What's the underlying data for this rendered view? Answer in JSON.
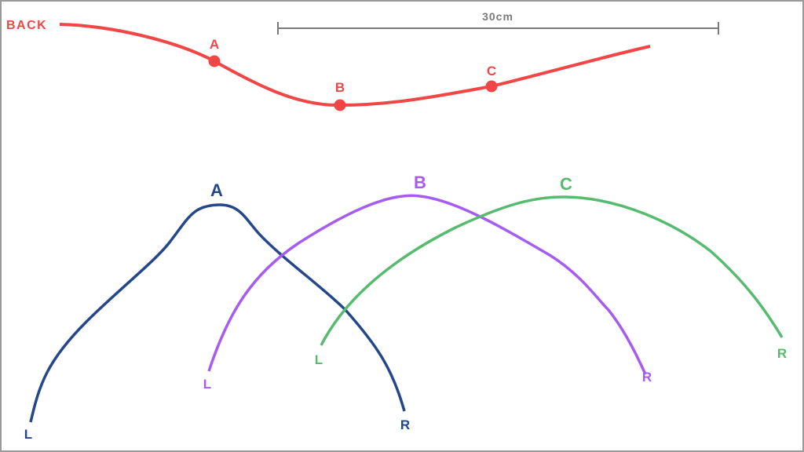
{
  "colors": {
    "back": "#f04646",
    "a": "#24468a",
    "b": "#a65cf0",
    "c": "#56bb6e",
    "scale": "#7a7a7a"
  },
  "back": {
    "label": "BACK",
    "points": [
      "A",
      "B",
      "C"
    ]
  },
  "scale_bar": {
    "label": "30cm"
  },
  "cross_sections": [
    {
      "label": "A",
      "left": "L",
      "right": "R"
    },
    {
      "label": "B",
      "left": "L",
      "right": "R"
    },
    {
      "label": "C",
      "left": "L",
      "right": "R"
    }
  ]
}
